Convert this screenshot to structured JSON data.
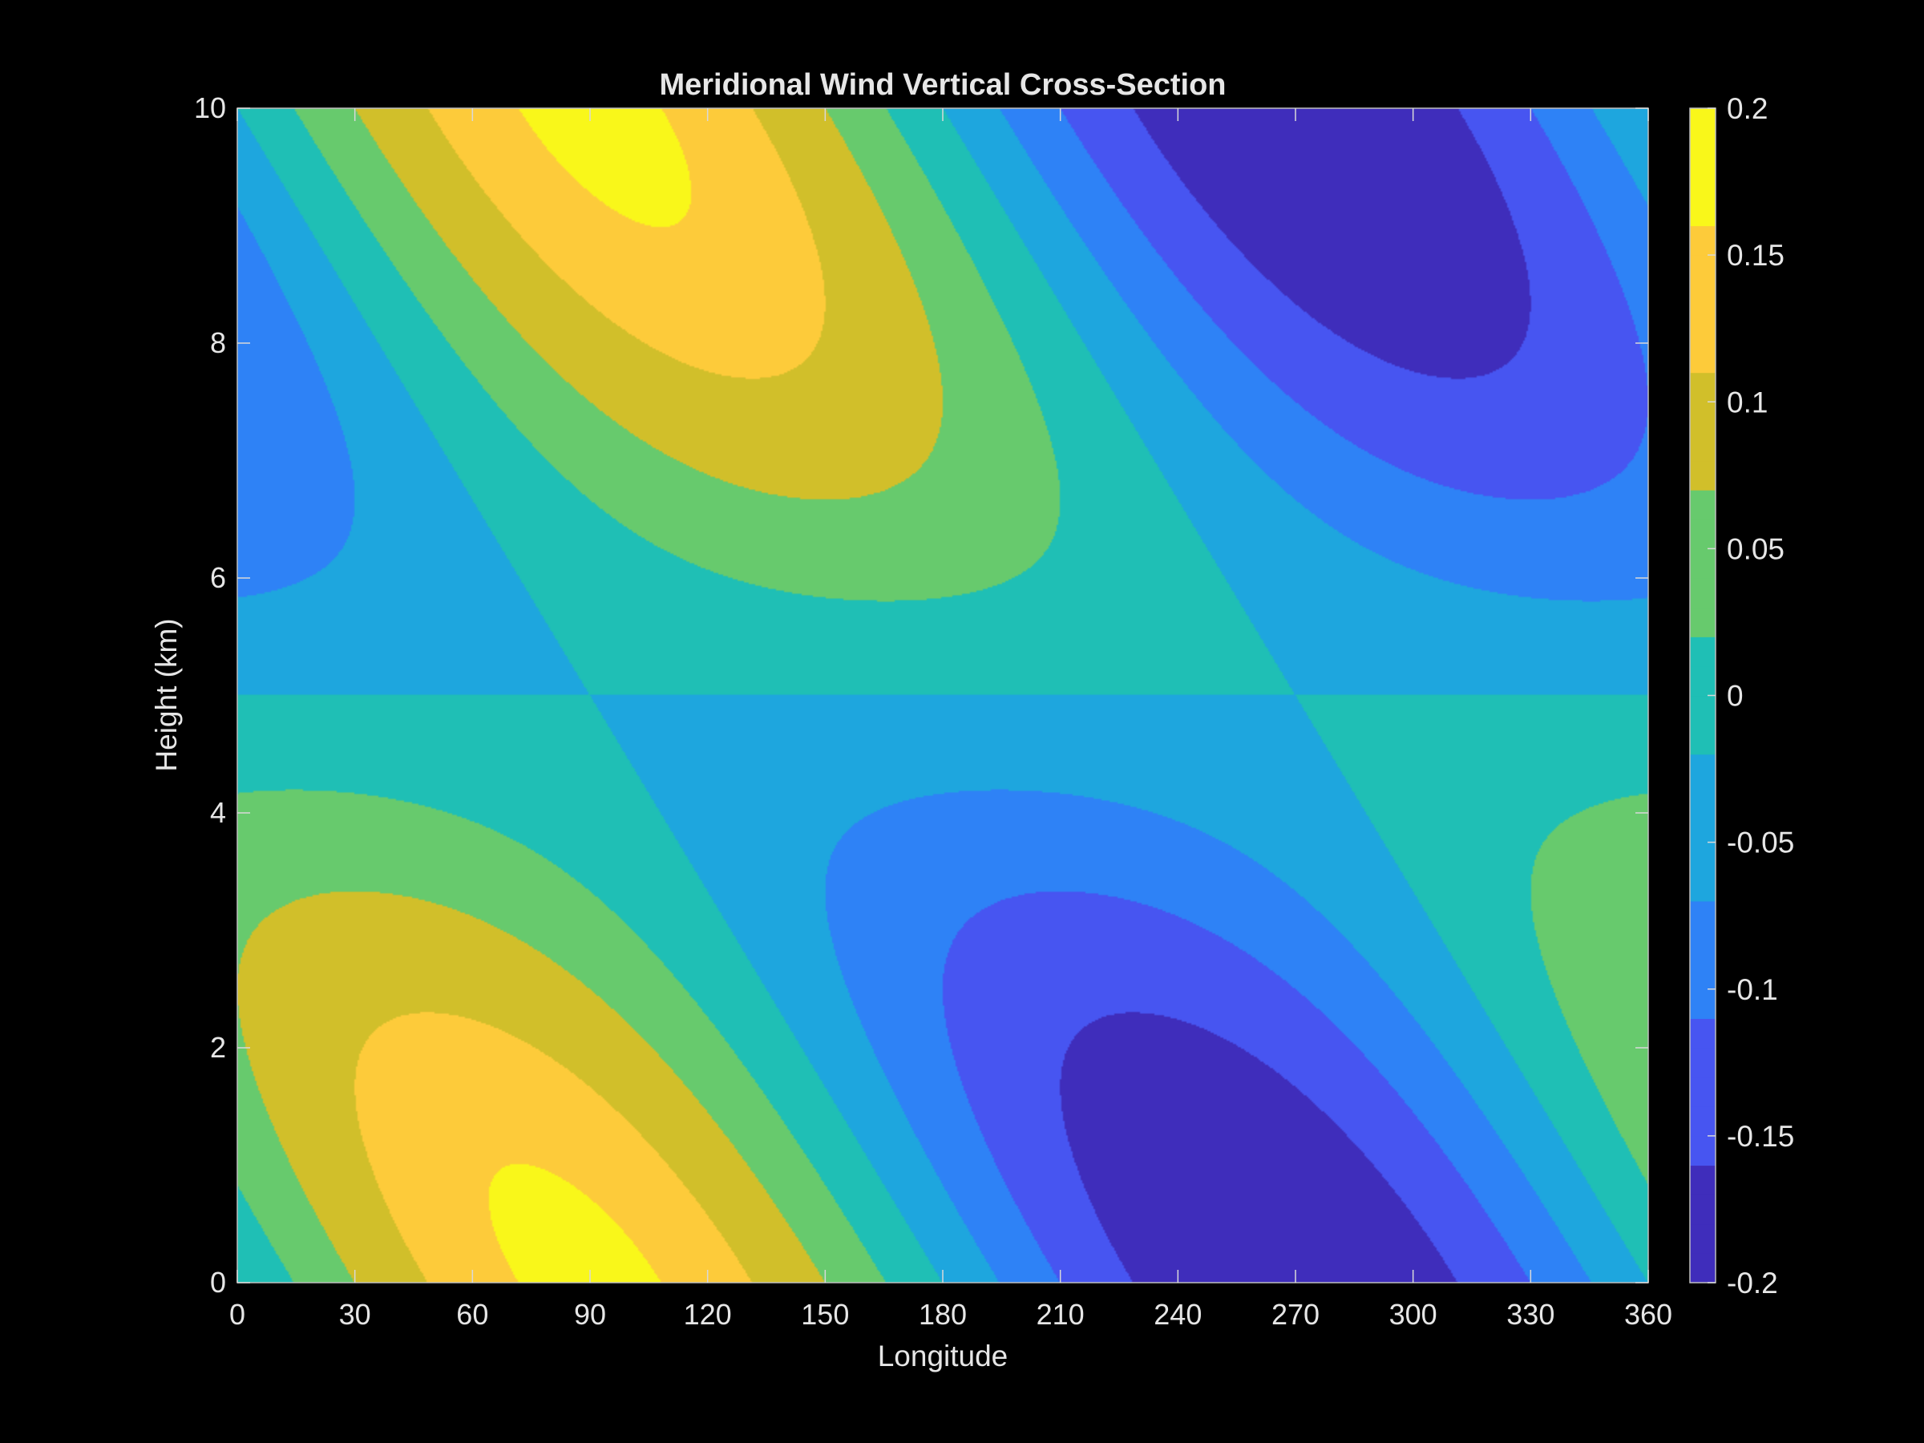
{
  "chart_data": {
    "type": "contourf",
    "title": "Meridional Wind Vertical Cross-Section",
    "xlabel": "Longitude",
    "ylabel": "Height (km)",
    "xlim": [
      0,
      360
    ],
    "ylim": [
      0,
      10
    ],
    "xticks": [
      0,
      30,
      60,
      90,
      120,
      150,
      180,
      210,
      240,
      270,
      300,
      330,
      360
    ],
    "yticks": [
      0,
      2,
      4,
      6,
      8,
      10
    ],
    "field": {
      "description": "v(lon, z) = 0.2 * sin(lon_rad + z*pi/10) * cos(z*pi/10)",
      "amplitude": 0.2,
      "vertical_scale_km": 10
    },
    "contour_levels": [
      -0.2,
      -0.15,
      -0.1,
      -0.05,
      0,
      0.05,
      0.1,
      0.15,
      0.2
    ],
    "colorbar": {
      "limits": [
        -0.2,
        0.2
      ],
      "ticks": [
        -0.2,
        -0.15,
        -0.1,
        -0.05,
        0,
        0.05,
        0.1,
        0.15,
        0.2
      ],
      "tick_labels": [
        "-0.2",
        "-0.15",
        "-0.1",
        "-0.05",
        "0",
        "0.05",
        "0.1",
        "0.15",
        "0.2"
      ]
    },
    "band_colors": [
      "#3f2dbb",
      "#4755f1",
      "#2e82f6",
      "#1ea6de",
      "#1fbfb5",
      "#67ca6d",
      "#d1bf2a",
      "#fdcb3a"
    ],
    "peak_color": "#f9f71a",
    "background_color": "#000000",
    "text_color": "#e6e6e6",
    "grid": false,
    "legend": "none"
  }
}
